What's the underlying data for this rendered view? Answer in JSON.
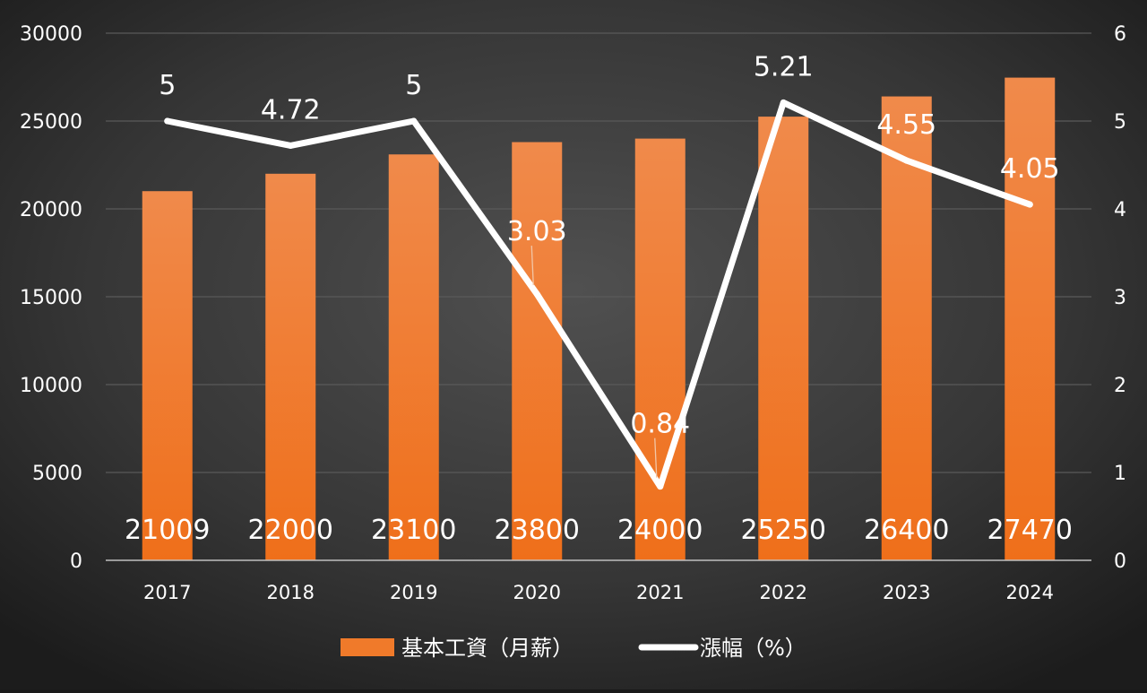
{
  "chart_data": {
    "type": "bar",
    "categories": [
      "2017",
      "2018",
      "2019",
      "2020",
      "2021",
      "2022",
      "2023",
      "2024"
    ],
    "series": [
      {
        "name": "基本工資（月薪）",
        "type": "bar",
        "axis": "left",
        "values": [
          21009,
          22000,
          23100,
          23800,
          24000,
          25250,
          26400,
          27470
        ],
        "color": "#f07a2a"
      },
      {
        "name": "漲幅（%）",
        "type": "line",
        "axis": "right",
        "values": [
          5,
          4.72,
          5,
          3.03,
          0.84,
          5.21,
          4.55,
          4.05
        ],
        "color": "#ffffff"
      }
    ],
    "y_left": {
      "min": 0,
      "max": 30000,
      "ticks": [
        "0",
        "5000",
        "10000",
        "15000",
        "20000",
        "25000",
        "30000"
      ]
    },
    "y_right": {
      "min": 0,
      "max": 6,
      "ticks": [
        "0",
        "1",
        "2",
        "3",
        "4",
        "5",
        "6"
      ]
    },
    "bar_labels": [
      "21009",
      "22000",
      "23100",
      "23800",
      "24000",
      "25250",
      "26400",
      "27470"
    ],
    "line_labels": [
      "5",
      "4.72",
      "5",
      "3.03",
      "0.84",
      "5.21",
      "4.55",
      "4.05"
    ],
    "grid": true,
    "legend_position": "bottom",
    "background": "#2f2f2f",
    "gridline_color": "#5a5a5a"
  }
}
